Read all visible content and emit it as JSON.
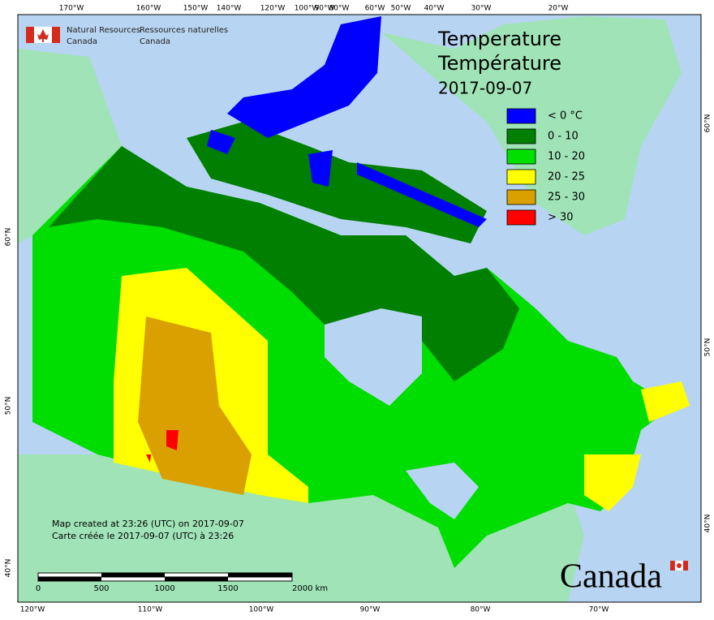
{
  "header": {
    "org_en": [
      "Natural Resources",
      "Canada"
    ],
    "org_fr": [
      "Ressources naturelles",
      "Canada"
    ]
  },
  "title": [
    "Temperature",
    "Température",
    "2017-09-07"
  ],
  "legend": [
    {
      "label": "< 0 °C",
      "color": "#0000ff"
    },
    {
      "label": "0 - 10",
      "color": "#007f00"
    },
    {
      "label": "10 - 20",
      "color": "#00e000"
    },
    {
      "label": "20 - 25",
      "color": "#ffff00"
    },
    {
      "label": "25 - 30",
      "color": "#d9a000"
    },
    {
      "label": "> 30",
      "color": "#ff0000"
    }
  ],
  "graticule": {
    "top": [
      "170°W",
      "160°W",
      "150°W",
      "140°W",
      "120°W",
      "100°W",
      "90°W",
      "80°W",
      "60°W",
      "50°W",
      "40°W",
      "30°W",
      "20°W"
    ],
    "bottom": [
      "120°W",
      "110°W",
      "100°W",
      "90°W",
      "80°W",
      "70°W"
    ],
    "left": [
      "60°N",
      "50°N",
      "40°N"
    ],
    "right": [
      "60°N",
      "50°N",
      "40°N"
    ]
  },
  "credits": [
    "Map created at 23:26 (UTC) on 2017-09-07",
    "Carte créée le 2017-09-07 (UTC) à 23:26"
  ],
  "scale_bar": [
    "0",
    "500",
    "1000",
    "1500",
    "2000  km"
  ],
  "wordmark": "Canada"
}
